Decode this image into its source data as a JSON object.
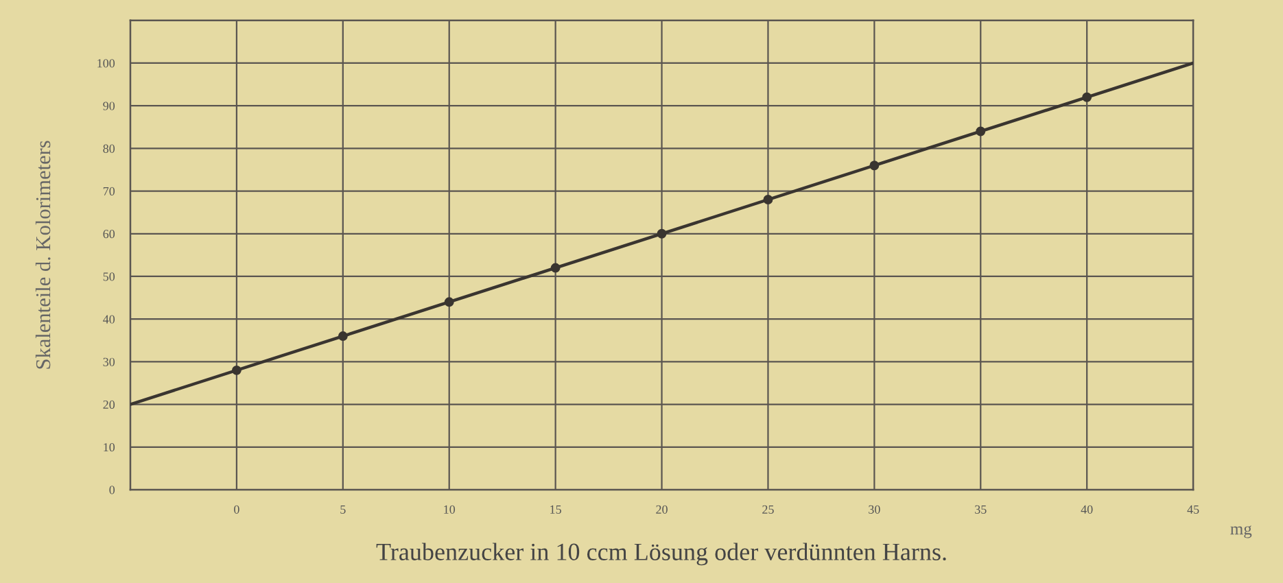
{
  "chart_data": {
    "type": "line",
    "xlabel": "Traubenzucker in 10 ccm Lösung oder verdünnten Harns.",
    "ylabel": "Skalenteile d. Kolorimeters",
    "annotations": [
      "mg"
    ],
    "series": [
      {
        "color": "#3a3530",
        "x": [
          -5,
          45
        ],
        "values": [
          20,
          100
        ],
        "marker": "none"
      },
      {
        "type": "scatter",
        "color": "#3a3530",
        "x": [
          0,
          5,
          10,
          15,
          20,
          25,
          30,
          35,
          40
        ],
        "values": [
          28,
          36,
          44,
          52,
          60,
          68,
          76,
          84,
          92
        ],
        "marker": "circle"
      }
    ],
    "xlim": [
      -5,
      45
    ],
    "xticks": [
      0,
      5,
      10,
      15,
      20,
      25,
      30,
      35,
      40,
      45
    ],
    "ylim": [
      0,
      110
    ],
    "yticks": [
      0,
      10,
      20,
      30,
      40,
      50,
      60,
      70,
      80,
      90,
      100
    ],
    "grid": true
  }
}
